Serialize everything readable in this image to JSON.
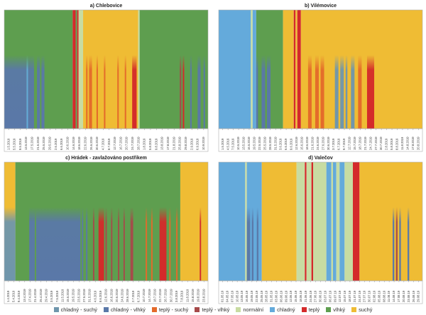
{
  "categories": {
    "wet": {
      "label": "vlhký",
      "color": "#5e9e4f"
    },
    "dry": {
      "label": "suchý",
      "color": "#efbc34"
    },
    "cold": {
      "label": "chladný",
      "color": "#64aadb"
    },
    "warm": {
      "label": "teplý",
      "color": "#d42a2a"
    },
    "normal": {
      "label": "normální",
      "color": "#c8dca2"
    },
    "cold_dry": {
      "label": "chladný - suchý",
      "color": "#6f96ac"
    },
    "cold_wet": {
      "label": "chladný - vlhký",
      "color": "#5a78a8"
    },
    "warm_dry": {
      "label": "teplý - suchý",
      "color": "#e46a2a"
    },
    "warm_wet": {
      "label": "teplý - vlhký",
      "color": "#a64a4a"
    }
  },
  "legend_order": [
    "cold_dry",
    "cold_wet",
    "warm_dry",
    "warm_wet",
    "normal",
    "cold",
    "warm",
    "wet",
    "dry"
  ],
  "chart_data": [
    {
      "type": "heatmap",
      "title": "a) Chlebovice",
      "x_start": "2019-05-01",
      "x_end": "2019-09-14",
      "tick_labels": [
        "1.5.2019",
        "5.5.2019",
        "9.5.2019",
        "13.5.2019",
        "17.5.2019",
        "21.5.2019",
        "25.5.2019",
        "29.5.2019",
        "2.6.2019",
        "6.6.2019",
        "10.6.2019",
        "14.6.2019",
        "18.6.2019",
        "22.6.2019",
        "26.6.2019",
        "30.6.2019",
        "4.7.2019",
        "8.7.2019",
        "12.7.2019",
        "16.7.2019",
        "20.7.2019",
        "24.7.2019",
        "28.7.2019",
        "1.8.2019",
        "5.8.2019",
        "9.8.2019",
        "13.8.2019",
        "17.8.2019",
        "21.8.2019",
        "25.8.2019",
        "29.8.2019",
        "2.9.2019",
        "6.9.2019",
        "10.9.2019"
      ],
      "background": [
        {
          "from": "2019-05-01",
          "to": "2019-06-15",
          "cat": "wet"
        },
        {
          "from": "2019-06-16",
          "to": "2019-06-17",
          "cat": "warm"
        },
        {
          "from": "2019-06-18",
          "to": "2019-06-18",
          "cat": "wet"
        },
        {
          "from": "2019-06-19",
          "to": "2019-06-19",
          "cat": "warm"
        },
        {
          "from": "2019-06-20",
          "to": "2019-06-22",
          "cat": "normal"
        },
        {
          "from": "2019-06-23",
          "to": "2019-07-29",
          "cat": "dry"
        },
        {
          "from": "2019-07-30",
          "to": "2019-07-30",
          "cat": "normal"
        },
        {
          "from": "2019-07-31",
          "to": "2019-09-14",
          "cat": "wet"
        }
      ],
      "low_band": {
        "fraction": 0.62,
        "segments": [
          {
            "from": "2019-05-01",
            "to": "2019-05-15",
            "cat": "cold_wet"
          },
          {
            "from": "2019-05-16",
            "to": "2019-05-16",
            "cat": "cold"
          },
          {
            "from": "2019-05-17",
            "to": "2019-05-20",
            "cat": "cold_wet"
          },
          {
            "from": "2019-05-23",
            "to": "2019-05-24",
            "cat": "cold_wet"
          },
          {
            "from": "2019-05-26",
            "to": "2019-05-27",
            "cat": "cold_wet"
          },
          {
            "from": "2019-06-25",
            "to": "2019-06-25",
            "cat": "warm_dry"
          },
          {
            "from": "2019-06-27",
            "to": "2019-06-28",
            "cat": "warm_dry"
          },
          {
            "from": "2019-07-02",
            "to": "2019-07-02",
            "cat": "warm_dry"
          },
          {
            "from": "2019-07-07",
            "to": "2019-07-07",
            "cat": "warm_dry"
          },
          {
            "from": "2019-07-16",
            "to": "2019-07-16",
            "cat": "warm_dry"
          },
          {
            "from": "2019-07-21",
            "to": "2019-07-21",
            "cat": "warm_dry"
          },
          {
            "from": "2019-07-26",
            "to": "2019-07-28",
            "cat": "warm"
          },
          {
            "from": "2019-08-27",
            "to": "2019-08-27",
            "cat": "warm_wet"
          },
          {
            "from": "2019-08-29",
            "to": "2019-08-29",
            "cat": "warm"
          },
          {
            "from": "2019-09-03",
            "to": "2019-09-03",
            "cat": "cold_wet"
          },
          {
            "from": "2019-09-08",
            "to": "2019-09-09",
            "cat": "cold_wet"
          },
          {
            "from": "2019-09-12",
            "to": "2019-09-12",
            "cat": "cold_wet"
          }
        ]
      }
    },
    {
      "type": "heatmap",
      "title": "b) Vilémovice",
      "x_start": "2019-05-01",
      "x_end": "2019-08-22",
      "tick_labels": [
        "1.5.2019",
        "4.5.2019",
        "7.5.2019",
        "10.5.2019",
        "13.5.2019",
        "16.5.2019",
        "19.5.2019",
        "22.5.2019",
        "25.5.2019",
        "28.5.2019",
        "31.5.2019",
        "3.6.2019",
        "6.6.2019",
        "9.6.2019",
        "12.6.2019",
        "15.6.2019",
        "18.6.2019",
        "21.6.2019",
        "24.6.2019",
        "27.6.2019",
        "30.6.2019",
        "3.7.2019",
        "6.7.2019",
        "9.7.2019",
        "12.7.2019",
        "15.7.2019",
        "18.7.2019",
        "21.7.2019",
        "24.7.2019",
        "27.7.2019",
        "30.7.2019",
        "2.8.2019",
        "5.8.2019",
        "8.8.2019",
        "11.8.2019",
        "14.8.2019",
        "17.8.2019",
        "20.8.2019"
      ],
      "background": [
        {
          "from": "2019-05-01",
          "to": "2019-05-18",
          "cat": "cold"
        },
        {
          "from": "2019-05-19",
          "to": "2019-05-19",
          "cat": "normal"
        },
        {
          "from": "2019-05-20",
          "to": "2019-05-21",
          "cat": "cold"
        },
        {
          "from": "2019-05-22",
          "to": "2019-06-05",
          "cat": "wet"
        },
        {
          "from": "2019-06-06",
          "to": "2019-06-11",
          "cat": "dry"
        },
        {
          "from": "2019-06-12",
          "to": "2019-06-12",
          "cat": "warm"
        },
        {
          "from": "2019-06-13",
          "to": "2019-06-13",
          "cat": "dry"
        },
        {
          "from": "2019-06-14",
          "to": "2019-06-15",
          "cat": "warm"
        },
        {
          "from": "2019-06-16",
          "to": "2019-08-22",
          "cat": "dry"
        }
      ],
      "low_band": {
        "fraction": 0.62,
        "segments": [
          {
            "from": "2019-05-22",
            "to": "2019-05-22",
            "cat": "cold_wet"
          },
          {
            "from": "2019-05-25",
            "to": "2019-05-26",
            "cat": "cold_wet"
          },
          {
            "from": "2019-05-28",
            "to": "2019-05-29",
            "cat": "cold_wet"
          },
          {
            "from": "2019-06-20",
            "to": "2019-06-21",
            "cat": "warm_dry"
          },
          {
            "from": "2019-06-24",
            "to": "2019-06-25",
            "cat": "warm_dry"
          },
          {
            "from": "2019-06-27",
            "to": "2019-06-28",
            "cat": "warm_dry"
          },
          {
            "from": "2019-07-05",
            "to": "2019-07-06",
            "cat": "cold_dry"
          },
          {
            "from": "2019-07-08",
            "to": "2019-07-09",
            "cat": "cold_dry"
          },
          {
            "from": "2019-07-11",
            "to": "2019-07-11",
            "cat": "cold_dry"
          },
          {
            "from": "2019-07-14",
            "to": "2019-07-15",
            "cat": "cold_dry"
          },
          {
            "from": "2019-07-18",
            "to": "2019-07-19",
            "cat": "warm_dry"
          },
          {
            "from": "2019-07-23",
            "to": "2019-07-26",
            "cat": "warm"
          }
        ]
      }
    },
    {
      "type": "heatmap",
      "title": "c) Hrádek - zavlažováno postřikem",
      "x_start": "2019-04-01",
      "x_end": "2019-08-25",
      "tick_labels": [
        "1.4.2019",
        "5.4.2019",
        "9.4.2019",
        "13.4.2019",
        "17.4.2019",
        "21.4.2019",
        "25.4.2019",
        "29.4.2019",
        "3.5.2019",
        "7.5.2019",
        "11.5.2019",
        "15.5.2019",
        "19.5.2019",
        "23.5.2019",
        "27.5.2019",
        "31.5.2019",
        "4.6.2019",
        "8.6.2019",
        "12.6.2019",
        "16.6.2019",
        "20.6.2019",
        "24.6.2019",
        "28.6.2019",
        "2.7.2019",
        "6.7.2019",
        "10.7.2019",
        "14.7.2019",
        "18.7.2019",
        "22.7.2019",
        "26.7.2019",
        "30.7.2019",
        "3.8.2019",
        "7.8.2019",
        "11.8.2019",
        "15.8.2019",
        "19.8.2019",
        "23.8.2019"
      ],
      "background": [
        {
          "from": "2019-04-01",
          "to": "2019-04-08",
          "cat": "dry"
        },
        {
          "from": "2019-04-09",
          "to": "2019-08-05",
          "cat": "wet"
        },
        {
          "from": "2019-08-06",
          "to": "2019-08-25",
          "cat": "dry"
        }
      ],
      "low_band": {
        "fraction": 0.62,
        "segments": [
          {
            "from": "2019-04-01",
            "to": "2019-04-08",
            "cat": "cold_dry"
          },
          {
            "from": "2019-04-19",
            "to": "2019-05-25",
            "cat": "cold_wet"
          },
          {
            "from": "2019-04-23",
            "to": "2019-04-23",
            "cat": "wet"
          },
          {
            "from": "2019-05-27",
            "to": "2019-05-27",
            "cat": "cold_wet"
          },
          {
            "from": "2019-05-30",
            "to": "2019-05-30",
            "cat": "cold_wet"
          },
          {
            "from": "2019-06-04",
            "to": "2019-06-04",
            "cat": "warm_wet"
          },
          {
            "from": "2019-06-08",
            "to": "2019-06-11",
            "cat": "warm"
          },
          {
            "from": "2019-06-13",
            "to": "2019-06-13",
            "cat": "warm_wet"
          },
          {
            "from": "2019-06-17",
            "to": "2019-06-17",
            "cat": "warm_wet"
          },
          {
            "from": "2019-06-22",
            "to": "2019-06-22",
            "cat": "warm_wet"
          },
          {
            "from": "2019-06-26",
            "to": "2019-06-26",
            "cat": "warm_wet"
          },
          {
            "from": "2019-07-01",
            "to": "2019-07-02",
            "cat": "warm_wet"
          },
          {
            "from": "2019-07-12",
            "to": "2019-07-12",
            "cat": "warm_dry"
          },
          {
            "from": "2019-07-16",
            "to": "2019-07-16",
            "cat": "warm_dry"
          },
          {
            "from": "2019-07-22",
            "to": "2019-07-26",
            "cat": "warm"
          },
          {
            "from": "2019-07-29",
            "to": "2019-07-29",
            "cat": "warm_dry"
          },
          {
            "from": "2019-08-03",
            "to": "2019-08-03",
            "cat": "warm_dry"
          },
          {
            "from": "2019-08-20",
            "to": "2019-08-20",
            "cat": "warm"
          }
        ]
      }
    },
    {
      "type": "heatmap",
      "title": "d) Valečov",
      "x_start": "2019-05-01",
      "x_end": "2019-08-31",
      "tick_labels": [
        "01.05.19",
        "04.05.19",
        "07.05.19",
        "10.05.19",
        "13.05.19",
        "16.05.19",
        "19.05.19",
        "22.05.19",
        "25.05.19",
        "28.05.19",
        "31.05.19",
        "03.06.19",
        "06.06.19",
        "09.06.19",
        "12.06.19",
        "15.06.19",
        "18.06.19",
        "21.06.19",
        "24.06.19",
        "27.06.19",
        "30.06.19",
        "03.07.19",
        "06.07.19",
        "09.07.19",
        "12.07.19",
        "15.07.19",
        "18.07.19",
        "21.07.19",
        "24.07.19",
        "27.07.19",
        "30.07.19",
        "02.08.19",
        "05.08.19",
        "08.08.19",
        "11.08.19",
        "14.08.19",
        "17.08.19",
        "20.08.19",
        "23.08.19",
        "26.08.19",
        "29.08.19"
      ],
      "background": [
        {
          "from": "2019-05-01",
          "to": "2019-05-16",
          "cat": "cold"
        },
        {
          "from": "2019-05-17",
          "to": "2019-05-17",
          "cat": "normal"
        },
        {
          "from": "2019-05-18",
          "to": "2019-05-26",
          "cat": "cold"
        },
        {
          "from": "2019-05-27",
          "to": "2019-06-16",
          "cat": "dry"
        },
        {
          "from": "2019-06-17",
          "to": "2019-06-21",
          "cat": "normal"
        },
        {
          "from": "2019-06-22",
          "to": "2019-06-22",
          "cat": "warm"
        },
        {
          "from": "2019-06-23",
          "to": "2019-06-25",
          "cat": "normal"
        },
        {
          "from": "2019-06-26",
          "to": "2019-06-26",
          "cat": "warm"
        },
        {
          "from": "2019-06-27",
          "to": "2019-07-04",
          "cat": "normal"
        },
        {
          "from": "2019-07-05",
          "to": "2019-07-07",
          "cat": "cold"
        },
        {
          "from": "2019-07-08",
          "to": "2019-07-08",
          "cat": "normal"
        },
        {
          "from": "2019-07-09",
          "to": "2019-07-10",
          "cat": "cold"
        },
        {
          "from": "2019-07-11",
          "to": "2019-07-12",
          "cat": "normal"
        },
        {
          "from": "2019-07-13",
          "to": "2019-07-15",
          "cat": "cold"
        },
        {
          "from": "2019-07-16",
          "to": "2019-07-20",
          "cat": "normal"
        },
        {
          "from": "2019-07-21",
          "to": "2019-07-24",
          "cat": "warm"
        },
        {
          "from": "2019-07-25",
          "to": "2019-08-31",
          "cat": "dry"
        }
      ],
      "low_band": {
        "fraction": 0.62,
        "segments": [
          {
            "from": "2019-05-18",
            "to": "2019-05-19",
            "cat": "cold_wet"
          },
          {
            "from": "2019-05-21",
            "to": "2019-05-21",
            "cat": "cold_wet"
          },
          {
            "from": "2019-05-24",
            "to": "2019-05-24",
            "cat": "cold_wet"
          },
          {
            "from": "2019-08-14",
            "to": "2019-08-14",
            "cat": "cold_wet"
          },
          {
            "from": "2019-08-16",
            "to": "2019-08-16",
            "cat": "warm_wet"
          },
          {
            "from": "2019-08-18",
            "to": "2019-08-18",
            "cat": "cold_wet"
          },
          {
            "from": "2019-08-23",
            "to": "2019-08-23",
            "cat": "cold_wet"
          }
        ]
      }
    }
  ]
}
